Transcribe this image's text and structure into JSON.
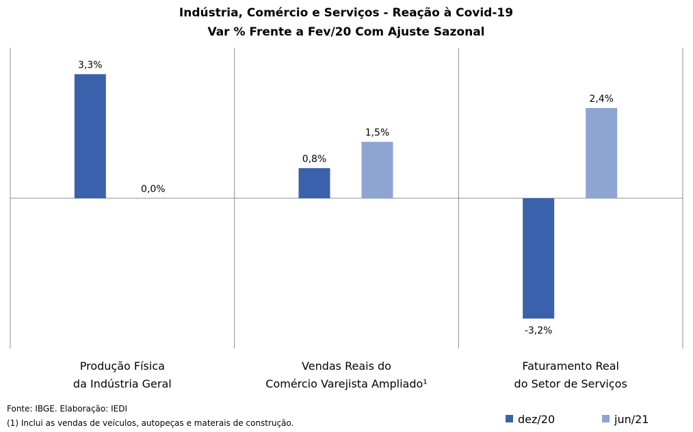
{
  "chart_data": {
    "type": "bar",
    "title": "Indústria, Comércio e Serviços - Reação à Covid-19",
    "subtitle": "Var % Frente a Fev/20 Com Ajuste Sazonal",
    "categories": [
      [
        "Produção Física",
        "da Indústria Geral"
      ],
      [
        "Vendas Reais do",
        "Comércio Varejista Ampliado¹"
      ],
      [
        "Faturamento Real",
        "do Setor de Serviços"
      ]
    ],
    "series": [
      {
        "name": "dez/20",
        "color": "#3a62ac",
        "values": [
          3.3,
          0.8,
          -3.2
        ],
        "labels": [
          "3,3%",
          "0,8%",
          "-3,2%"
        ]
      },
      {
        "name": "jun/21",
        "color": "#8ea4d3",
        "values": [
          0.0,
          1.5,
          2.4
        ],
        "labels": [
          "0,0%",
          "1,5%",
          "2,4%"
        ]
      }
    ],
    "ylim": [
      -3.8,
      4.0
    ],
    "grid": false,
    "legend": "bottom-right"
  },
  "footer": {
    "source": "Fonte: IBGE. Elaboração: IEDI",
    "note": "(1) Inclui as vendas de veículos, autopeças e materais de construção."
  }
}
